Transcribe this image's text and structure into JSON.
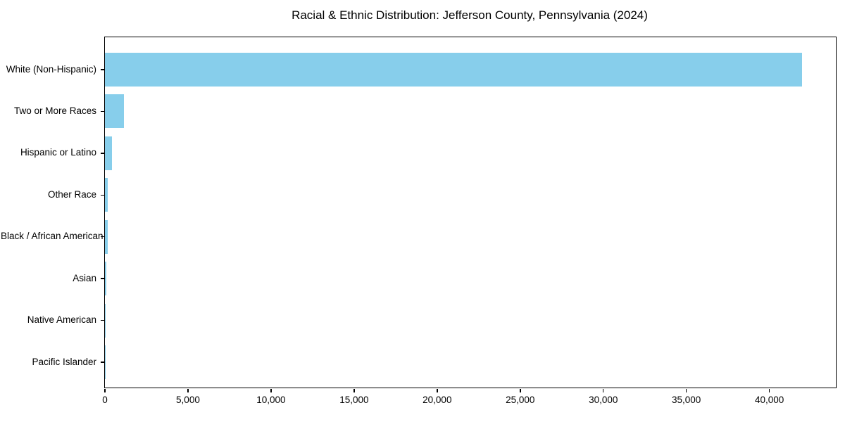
{
  "chart_data": {
    "type": "bar",
    "orientation": "horizontal",
    "title": "Racial & Ethnic Distribution: Jefferson County, Pennsylvania (2024)",
    "categories": [
      "White (Non-Hispanic)",
      "Two or More Races",
      "Hispanic or Latino",
      "Other Race",
      "Black / African American",
      "Asian",
      "Native American",
      "Pacific Islander"
    ],
    "values": [
      41950,
      1150,
      430,
      170,
      155,
      100,
      40,
      15
    ],
    "xlabel": "",
    "ylabel": "",
    "xlim": [
      0,
      44000
    ],
    "x_ticks": [
      0,
      5000,
      10000,
      15000,
      20000,
      25000,
      30000,
      35000,
      40000
    ],
    "x_tick_labels": [
      "0",
      "5,000",
      "10,000",
      "15,000",
      "20,000",
      "25,000",
      "30,000",
      "35,000",
      "40,000"
    ],
    "bar_color": "#87CEEB",
    "axis_color": "#000000",
    "background_color": "#ffffff",
    "grid": false,
    "legend": null
  }
}
